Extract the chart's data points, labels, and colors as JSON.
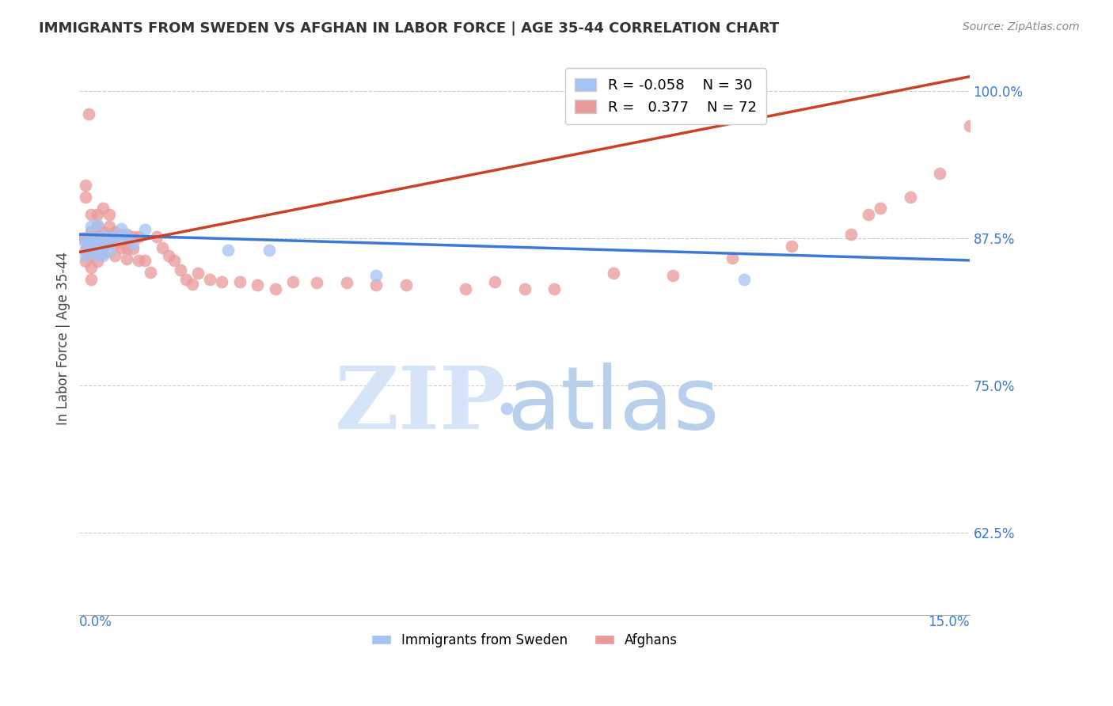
{
  "title": "IMMIGRANTS FROM SWEDEN VS AFGHAN IN LABOR FORCE | AGE 35-44 CORRELATION CHART",
  "source": "Source: ZipAtlas.com",
  "ylabel": "In Labor Force | Age 35-44",
  "ytick_labels": [
    "62.5%",
    "75.0%",
    "87.5%",
    "100.0%"
  ],
  "ytick_values": [
    0.625,
    0.75,
    0.875,
    1.0
  ],
  "xlim": [
    0.0,
    0.15
  ],
  "ylim": [
    0.555,
    1.025
  ],
  "legend_sweden_R": "-0.058",
  "legend_sweden_N": "30",
  "legend_afghan_R": "0.377",
  "legend_afghan_N": "72",
  "sweden_color": "#a4c2f4",
  "afghan_color": "#ea9999",
  "sweden_line_color": "#3c78d8",
  "afghan_line_color": "#cc4125",
  "watermark_zip_color": "#d6e4f7",
  "watermark_atlas_color": "#b8d0ec",
  "sweden_x": [
    0.001,
    0.001,
    0.001,
    0.002,
    0.002,
    0.002,
    0.002,
    0.003,
    0.003,
    0.003,
    0.003,
    0.003,
    0.004,
    0.004,
    0.004,
    0.004,
    0.005,
    0.005,
    0.005,
    0.006,
    0.007,
    0.007,
    0.008,
    0.009,
    0.011,
    0.025,
    0.032,
    0.05,
    0.072,
    0.112
  ],
  "sweden_y": [
    0.875,
    0.87,
    0.86,
    0.885,
    0.875,
    0.87,
    0.865,
    0.886,
    0.875,
    0.87,
    0.865,
    0.86,
    0.876,
    0.87,
    0.865,
    0.86,
    0.876,
    0.87,
    0.864,
    0.876,
    0.883,
    0.875,
    0.877,
    0.87,
    0.882,
    0.865,
    0.865,
    0.843,
    0.73,
    0.84
  ],
  "afghan_x": [
    0.0005,
    0.001,
    0.001,
    0.001,
    0.001,
    0.001,
    0.0015,
    0.002,
    0.002,
    0.002,
    0.002,
    0.002,
    0.002,
    0.003,
    0.003,
    0.003,
    0.003,
    0.003,
    0.004,
    0.004,
    0.004,
    0.004,
    0.004,
    0.005,
    0.005,
    0.005,
    0.006,
    0.006,
    0.006,
    0.007,
    0.007,
    0.008,
    0.008,
    0.008,
    0.009,
    0.009,
    0.01,
    0.01,
    0.011,
    0.012,
    0.013,
    0.014,
    0.015,
    0.016,
    0.017,
    0.018,
    0.019,
    0.02,
    0.022,
    0.024,
    0.027,
    0.03,
    0.033,
    0.036,
    0.04,
    0.045,
    0.05,
    0.055,
    0.065,
    0.07,
    0.075,
    0.08,
    0.09,
    0.1,
    0.11,
    0.12,
    0.13,
    0.133,
    0.135,
    0.14,
    0.145,
    0.15
  ],
  "afghan_y": [
    0.875,
    0.92,
    0.91,
    0.875,
    0.865,
    0.855,
    0.98,
    0.895,
    0.88,
    0.875,
    0.86,
    0.85,
    0.84,
    0.895,
    0.885,
    0.875,
    0.865,
    0.855,
    0.9,
    0.88,
    0.875,
    0.87,
    0.862,
    0.895,
    0.885,
    0.875,
    0.88,
    0.87,
    0.86,
    0.878,
    0.867,
    0.878,
    0.867,
    0.857,
    0.876,
    0.866,
    0.876,
    0.856,
    0.856,
    0.846,
    0.876,
    0.867,
    0.86,
    0.856,
    0.848,
    0.84,
    0.836,
    0.845,
    0.84,
    0.838,
    0.838,
    0.835,
    0.832,
    0.838,
    0.837,
    0.837,
    0.835,
    0.835,
    0.832,
    0.838,
    0.832,
    0.832,
    0.845,
    0.843,
    0.858,
    0.868,
    0.878,
    0.895,
    0.9,
    0.91,
    0.93,
    0.97
  ],
  "swedish_line_x": [
    0.0,
    0.15
  ],
  "swedish_line_y": [
    0.878,
    0.856
  ],
  "afghan_line_x": [
    0.0,
    0.15
  ],
  "afghan_line_y": [
    0.863,
    1.012
  ]
}
